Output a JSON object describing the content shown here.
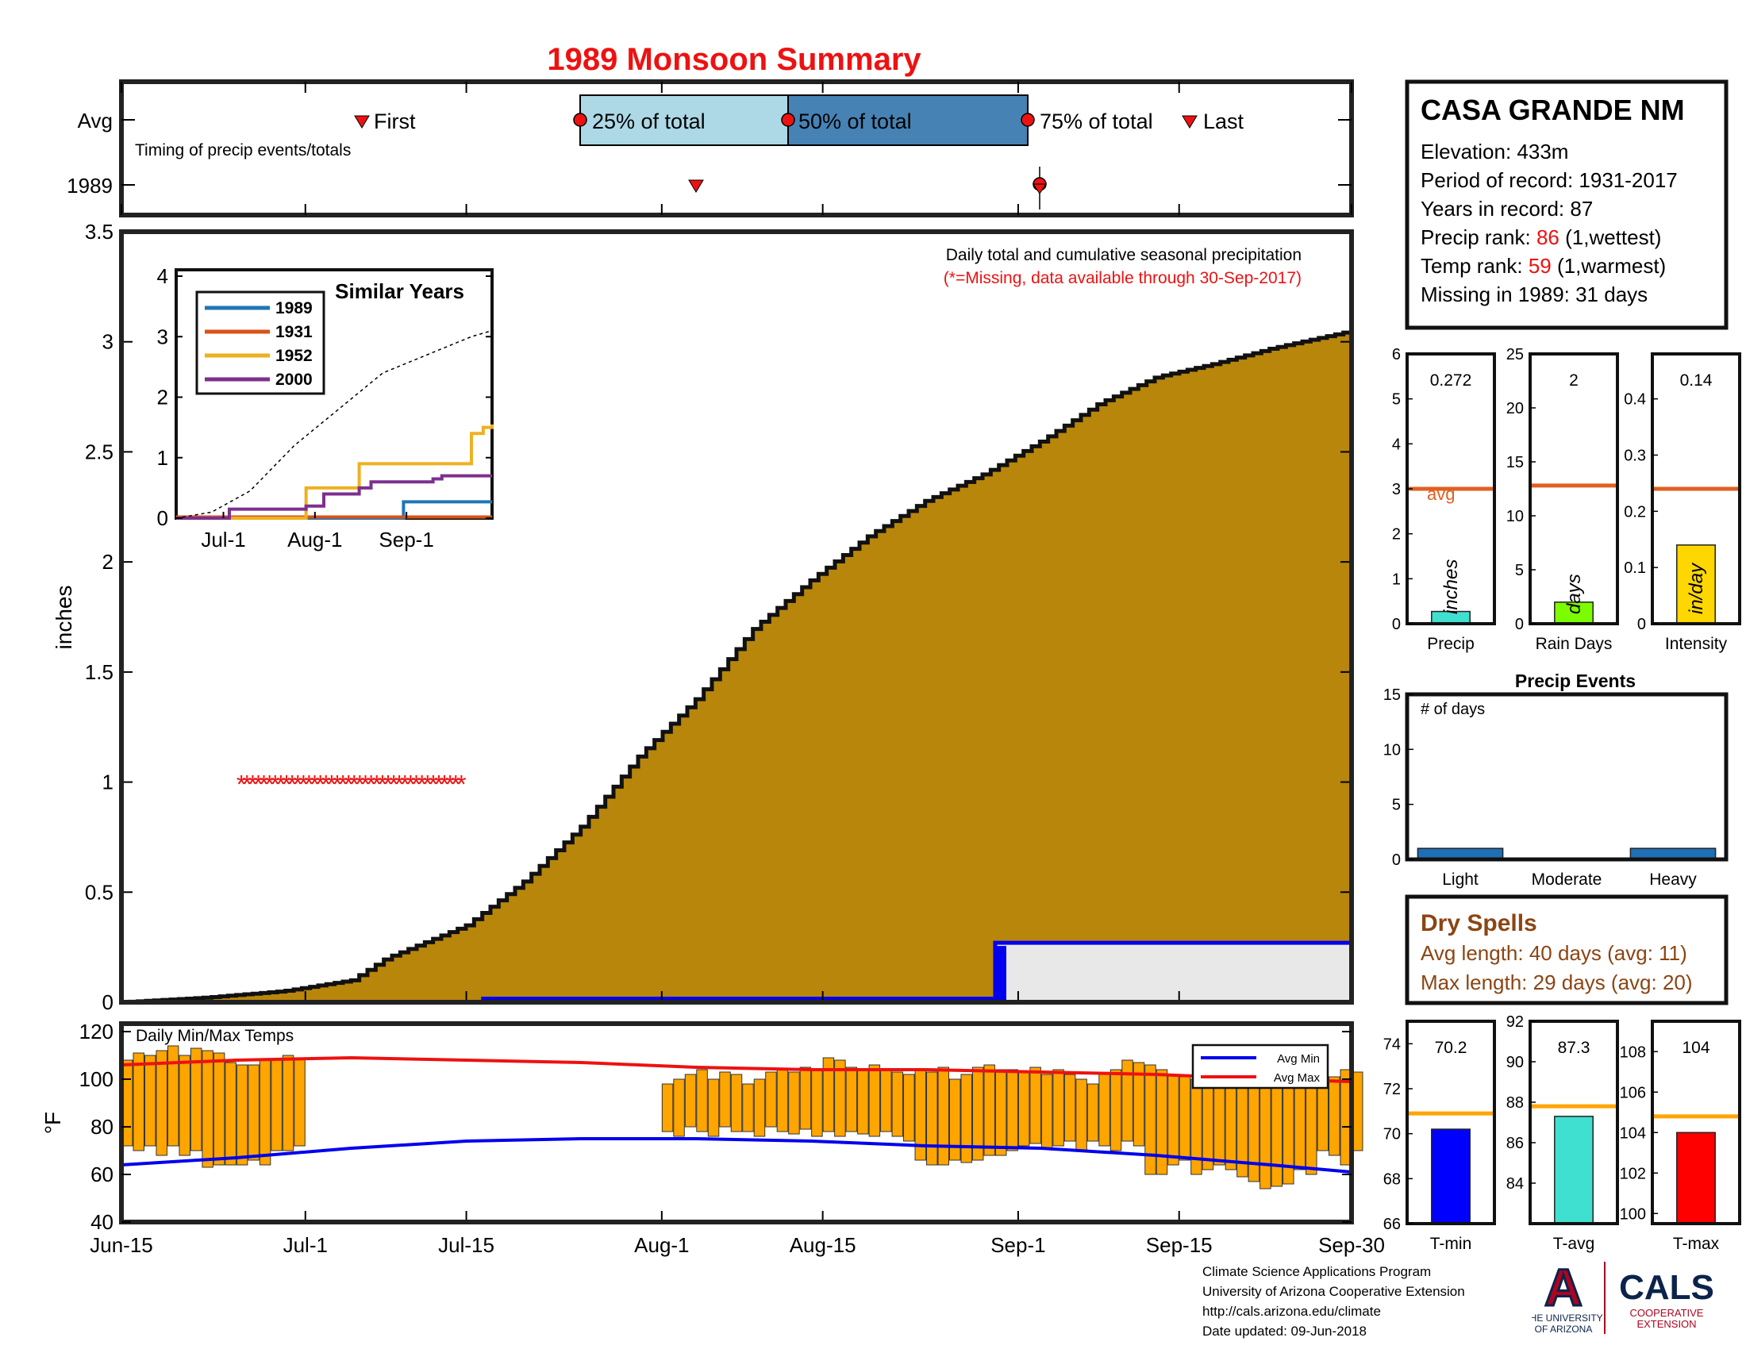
{
  "title": "1989 Monsoon Summary",
  "colors": {
    "title": "#ee1111",
    "fill": "#b8860b",
    "red": "#ee1111",
    "blue": "#0000ee",
    "orange_bar": "#ffa500",
    "avg_line": "#e06020",
    "dry": "#8b4513"
  },
  "station": {
    "name": "CASA GRANDE NM",
    "elevation_label": "Elevation: 433m",
    "period_label": "Period of record: 1931-2017",
    "years_label": "Years in record: 87",
    "precip_rank_prefix": "Precip rank: ",
    "precip_rank_value": "86",
    "precip_rank_suffix": " (1,wettest)",
    "temp_rank_prefix": "Temp rank: ",
    "temp_rank_value": "59",
    "temp_rank_suffix": " (1,warmest)",
    "missing_label": "Missing in 1989: 31 days"
  },
  "timing": {
    "row_avg": "Avg",
    "row_year": "1989",
    "caption": "Timing of precip events/totals",
    "first": "First",
    "p25": "25% of total",
    "p50": "50% of total",
    "p75": "75% of total",
    "last": "Last"
  },
  "main": {
    "note1": "Daily total and cumulative seasonal precipitation",
    "note2": "(*=Missing, data available through 30-Sep-2017)",
    "ylabel": "inches",
    "yticks": [
      "0",
      "0.5",
      "1",
      "1.5",
      "2",
      "2.5",
      "3",
      "3.5"
    ],
    "xticks": [
      "Jun-15",
      "Jul-1",
      "Jul-15",
      "Aug-1",
      "Aug-15",
      "Sep-1",
      "Sep-15",
      "Sep-30"
    ]
  },
  "inset": {
    "title": "Similar Years",
    "yticks": [
      "0",
      "1",
      "2",
      "3",
      "4"
    ],
    "xticks": [
      "Jul-1",
      "Aug-1",
      "Sep-1"
    ],
    "legend": [
      "1989",
      "1931",
      "1952",
      "2000"
    ]
  },
  "temps": {
    "caption": "Daily Min/Max Temps",
    "ylabel": "°F",
    "yticks": [
      "40",
      "60",
      "80",
      "100",
      "120"
    ],
    "legend_min": "Avg Min",
    "legend_max": "Avg Max"
  },
  "small": {
    "precip": {
      "label": "Precip",
      "value_label": "0.272",
      "unit": "inches",
      "avg": "avg",
      "yticks": [
        "0",
        "1",
        "2",
        "3",
        "4",
        "5",
        "6"
      ]
    },
    "raindays": {
      "label": "Rain Days",
      "value_label": "2",
      "unit": "days",
      "yticks": [
        "0",
        "5",
        "10",
        "15",
        "20",
        "25"
      ]
    },
    "intensity": {
      "label": "Intensity",
      "value_label": "0.14",
      "unit": "in/day",
      "yticks": [
        "0",
        "0.1",
        "0.2",
        "0.3",
        "0.4"
      ]
    }
  },
  "events": {
    "title": "Precip Events",
    "caption": "# of days",
    "categories": [
      "Light",
      "Moderate",
      "Heavy"
    ],
    "yticks": [
      "0",
      "5",
      "10",
      "15"
    ]
  },
  "dry": {
    "title": "Dry Spells",
    "avg_label": "Avg length: 40 days (avg: 11)",
    "max_label": "Max length: 29 days (avg: 20)"
  },
  "tbars": {
    "tmin": {
      "label": "T-min",
      "value_label": "70.2",
      "yticks": [
        "66",
        "68",
        "70",
        "72",
        "74"
      ]
    },
    "tavg": {
      "label": "T-avg",
      "value_label": "87.3",
      "yticks": [
        "84",
        "86",
        "88",
        "90",
        "92"
      ]
    },
    "tmax": {
      "label": "T-max",
      "value_label": "104",
      "yticks": [
        "100",
        "102",
        "104",
        "106",
        "108"
      ]
    }
  },
  "footer": {
    "line1": "Climate Science Applications Program",
    "line2": "University of Arizona Cooperative Extension",
    "line3": "http://cals.arizona.edu/climate",
    "line4": " Date updated: 09-Jun-2018"
  },
  "logos": {
    "ua_letter": "A",
    "ua_line1": "THE UNIVERSITY",
    "ua_line2": "OF ARIZONA",
    "cals": "CALS",
    "cals_line1": "COOPERATIVE",
    "cals_line2": "EXTENSION"
  },
  "chart_data": [
    {
      "type": "area",
      "title": "1989 Monsoon Summary",
      "ylabel": "inches",
      "ylim": [
        0,
        3.5
      ],
      "x_range": [
        "Jun-15",
        "Sep-30"
      ],
      "series": [
        {
          "name": "Daily total and cumulative seasonal precipitation",
          "x_days": [
            0,
            7,
            14,
            20,
            23,
            30,
            35,
            40,
            45,
            50,
            55,
            60,
            65,
            70,
            75,
            80,
            85,
            90,
            95,
            100,
            107
          ],
          "values": [
            0.0,
            0.02,
            0.05,
            0.1,
            0.2,
            0.35,
            0.55,
            0.8,
            1.12,
            1.38,
            1.7,
            1.92,
            2.12,
            2.28,
            2.4,
            2.55,
            2.72,
            2.84,
            2.9,
            2.97,
            3.05
          ]
        }
      ],
      "missing_marker": {
        "y": 1.0,
        "x_start_day": 10,
        "x_end_day": 30
      },
      "daily_1989": [
        {
          "day": 31.5,
          "value": 0.02
        },
        {
          "day": 76,
          "value": 0.27
        }
      ]
    },
    {
      "type": "line",
      "title": "Similar Years",
      "ylim": [
        0,
        4
      ],
      "xticks": [
        "Jul-1",
        "Aug-1",
        "Sep-1"
      ],
      "series": [
        {
          "name": "1989",
          "color": "#1f77b4",
          "x_days": [
            0,
            75,
            77,
            107
          ],
          "values": [
            0,
            0,
            0.27,
            0.27
          ]
        },
        {
          "name": "1931",
          "color": "#d95319",
          "x_days": [
            0,
            107
          ],
          "values": [
            0.02,
            0.02
          ]
        },
        {
          "name": "1952",
          "color": "#edb120",
          "x_days": [
            0,
            40,
            44,
            60,
            62,
            95,
            100,
            104,
            107
          ],
          "values": [
            0,
            0,
            0.5,
            0.5,
            0.9,
            0.9,
            1.4,
            1.5,
            1.55
          ]
        },
        {
          "name": "2000",
          "color": "#7e2f8e",
          "x_days": [
            0,
            15,
            18,
            44,
            50,
            62,
            66,
            87,
            90,
            107
          ],
          "values": [
            0,
            0,
            0.15,
            0.2,
            0.4,
            0.5,
            0.6,
            0.65,
            0.7,
            0.7
          ]
        },
        {
          "name": "average",
          "color": "#000000",
          "x_days": [
            0,
            12,
            25,
            40,
            55,
            70,
            85,
            100,
            107
          ],
          "values": [
            0,
            0.1,
            0.45,
            1.2,
            1.8,
            2.4,
            2.7,
            3.0,
            3.1
          ]
        }
      ]
    },
    {
      "type": "bar",
      "title": "Daily Min/Max Temps",
      "ylabel": "°F",
      "ylim": [
        40,
        120
      ],
      "bars": [
        {
          "day": 0,
          "min": 72,
          "max": 108
        },
        {
          "day": 1,
          "min": 70,
          "max": 111
        },
        {
          "day": 2,
          "min": 72,
          "max": 110
        },
        {
          "day": 3,
          "min": 68,
          "max": 112
        },
        {
          "day": 4,
          "min": 72,
          "max": 114
        },
        {
          "day": 5,
          "min": 68,
          "max": 110
        },
        {
          "day": 6,
          "min": 70,
          "max": 113
        },
        {
          "day": 7,
          "min": 63,
          "max": 112
        },
        {
          "day": 8,
          "min": 64,
          "max": 111
        },
        {
          "day": 9,
          "min": 64,
          "max": 107
        },
        {
          "day": 10,
          "min": 64,
          "max": 106
        },
        {
          "day": 11,
          "min": 66,
          "max": 106
        },
        {
          "day": 12,
          "min": 64,
          "max": 108
        },
        {
          "day": 13,
          "min": 70,
          "max": 108
        },
        {
          "day": 14,
          "min": 70,
          "max": 110
        },
        {
          "day": 15,
          "min": 72,
          "max": 109
        },
        {
          "day": 47,
          "min": 78,
          "max": 98
        },
        {
          "day": 48,
          "min": 76,
          "max": 100
        },
        {
          "day": 49,
          "min": 80,
          "max": 102
        },
        {
          "day": 50,
          "min": 78,
          "max": 104
        },
        {
          "day": 51,
          "min": 76,
          "max": 100
        },
        {
          "day": 52,
          "min": 80,
          "max": 103
        },
        {
          "day": 53,
          "min": 78,
          "max": 102
        },
        {
          "day": 54,
          "min": 78,
          "max": 98
        },
        {
          "day": 55,
          "min": 76,
          "max": 100
        },
        {
          "day": 56,
          "min": 80,
          "max": 103
        },
        {
          "day": 57,
          "min": 78,
          "max": 104
        },
        {
          "day": 58,
          "min": 77,
          "max": 103
        },
        {
          "day": 59,
          "min": 79,
          "max": 105
        },
        {
          "day": 60,
          "min": 76,
          "max": 104
        },
        {
          "day": 61,
          "min": 78,
          "max": 109
        },
        {
          "day": 62,
          "min": 76,
          "max": 108
        },
        {
          "day": 63,
          "min": 78,
          "max": 105
        },
        {
          "day": 64,
          "min": 77,
          "max": 104
        },
        {
          "day": 65,
          "min": 76,
          "max": 106
        },
        {
          "day": 66,
          "min": 78,
          "max": 104
        },
        {
          "day": 67,
          "min": 76,
          "max": 103
        },
        {
          "day": 68,
          "min": 74,
          "max": 102
        },
        {
          "day": 69,
          "min": 66,
          "max": 104
        },
        {
          "day": 70,
          "min": 64,
          "max": 103
        },
        {
          "day": 71,
          "min": 64,
          "max": 105
        },
        {
          "day": 72,
          "min": 66,
          "max": 100
        },
        {
          "day": 73,
          "min": 65,
          "max": 102
        },
        {
          "day": 74,
          "min": 66,
          "max": 105
        },
        {
          "day": 75,
          "min": 68,
          "max": 106
        },
        {
          "day": 76,
          "min": 68,
          "max": 104
        },
        {
          "day": 77,
          "min": 70,
          "max": 104
        },
        {
          "day": 78,
          "min": 72,
          "max": 103
        },
        {
          "day": 79,
          "min": 73,
          "max": 105
        },
        {
          "day": 80,
          "min": 71,
          "max": 102
        },
        {
          "day": 81,
          "min": 72,
          "max": 104
        },
        {
          "day": 82,
          "min": 74,
          "max": 102
        },
        {
          "day": 83,
          "min": 70,
          "max": 100
        },
        {
          "day": 84,
          "min": 74,
          "max": 98
        },
        {
          "day": 85,
          "min": 72,
          "max": 102
        },
        {
          "day": 86,
          "min": 70,
          "max": 104
        },
        {
          "day": 87,
          "min": 74,
          "max": 108
        },
        {
          "day": 88,
          "min": 72,
          "max": 107
        },
        {
          "day": 89,
          "min": 60,
          "max": 106
        },
        {
          "day": 90,
          "min": 60,
          "max": 104
        },
        {
          "day": 91,
          "min": 64,
          "max": 102
        },
        {
          "day": 92,
          "min": 66,
          "max": 101
        },
        {
          "day": 93,
          "min": 60,
          "max": 100
        },
        {
          "day": 94,
          "min": 62,
          "max": 99
        },
        {
          "day": 95,
          "min": 64,
          "max": 104
        },
        {
          "day": 96,
          "min": 62,
          "max": 100
        },
        {
          "day": 97,
          "min": 59,
          "max": 100
        },
        {
          "day": 98,
          "min": 57,
          "max": 103
        },
        {
          "day": 99,
          "min": 54,
          "max": 101
        },
        {
          "day": 100,
          "min": 55,
          "max": 98
        },
        {
          "day": 101,
          "min": 56,
          "max": 100
        },
        {
          "day": 102,
          "min": 62,
          "max": 101
        },
        {
          "day": 103,
          "min": 60,
          "max": 99
        },
        {
          "day": 104,
          "min": 70,
          "max": 102
        },
        {
          "day": 105,
          "min": 68,
          "max": 101
        },
        {
          "day": 106,
          "min": 64,
          "max": 104
        },
        {
          "day": 107,
          "min": 70,
          "max": 103
        }
      ],
      "avg_min": {
        "x_days": [
          0,
          10,
          20,
          30,
          40,
          50,
          60,
          70,
          80,
          90,
          100,
          107
        ],
        "values": [
          64,
          67,
          71,
          74,
          75,
          75,
          74,
          72,
          71,
          68,
          64,
          61
        ]
      },
      "avg_max": {
        "x_days": [
          0,
          10,
          20,
          30,
          40,
          50,
          60,
          70,
          80,
          90,
          100,
          107
        ],
        "values": [
          106,
          108,
          109,
          108,
          107,
          105,
          104,
          104,
          103,
          102,
          100,
          99
        ]
      }
    },
    {
      "type": "bar",
      "categories": [
        "Precip"
      ],
      "values": [
        0.272
      ],
      "avg": 3.0,
      "ylim": [
        0,
        6
      ],
      "color": "#40e0d0"
    },
    {
      "type": "bar",
      "categories": [
        "Rain Days"
      ],
      "values": [
        2
      ],
      "avg": 12.8,
      "ylim": [
        0,
        25
      ],
      "color": "#7cfc00"
    },
    {
      "type": "bar",
      "categories": [
        "Intensity"
      ],
      "values": [
        0.14
      ],
      "avg": 0.24,
      "ylim": [
        0,
        0.48
      ],
      "color": "#ffd700"
    },
    {
      "type": "bar",
      "title": "Precip Events",
      "categories": [
        "Light",
        "Moderate",
        "Heavy"
      ],
      "values": [
        1,
        0,
        1
      ],
      "ylim": [
        0,
        15
      ]
    },
    {
      "type": "bar",
      "categories": [
        "T-min"
      ],
      "values": [
        70.2
      ],
      "avg": 70.9,
      "ylim": [
        66,
        75
      ],
      "color": "#0000ff"
    },
    {
      "type": "bar",
      "categories": [
        "T-avg"
      ],
      "values": [
        87.3
      ],
      "avg": 87.8,
      "ylim": [
        82,
        92
      ],
      "color": "#40e0d0"
    },
    {
      "type": "bar",
      "categories": [
        "T-max"
      ],
      "values": [
        104
      ],
      "avg": 104.8,
      "ylim": [
        99.5,
        109.5
      ],
      "color": "#ff0000"
    }
  ]
}
